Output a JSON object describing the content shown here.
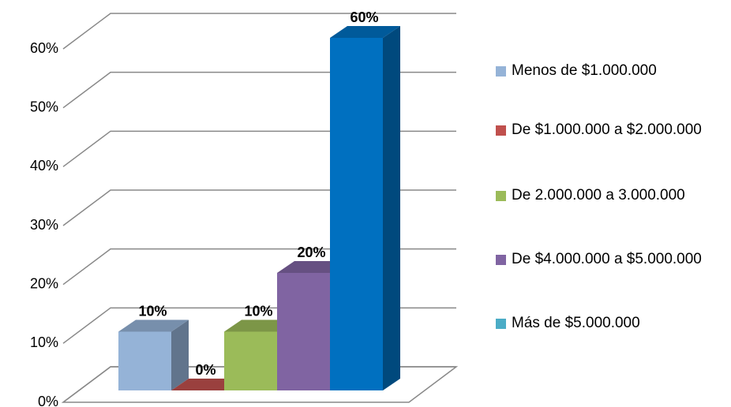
{
  "chart_data": {
    "type": "bar3d",
    "series": [
      {
        "name": "Menos de $1.000.000",
        "color": "#95b3d7",
        "values": [
          10
        ],
        "value_labels": [
          "10%"
        ]
      },
      {
        "name": "De $1.000.000 a $2.000.000",
        "color": "#c0504d",
        "values": [
          0
        ],
        "value_labels": [
          "0%"
        ]
      },
      {
        "name": "De 2.000.000 a 3.000.000",
        "color": "#9bbb59",
        "values": [
          10
        ],
        "value_labels": [
          "10%"
        ]
      },
      {
        "name": "De $4.000.000 a $5.000.000",
        "color": "#8064a2",
        "values": [
          20
        ],
        "value_labels": [
          "20%"
        ]
      },
      {
        "name": "Más de $5.000.000",
        "color": "#4bacc6",
        "bar_color": "#0070c0",
        "values": [
          60
        ],
        "value_labels": [
          "60%"
        ]
      }
    ],
    "ylim": [
      0,
      60
    ],
    "yticks": [
      {
        "value": 0,
        "label": "0%"
      },
      {
        "value": 10,
        "label": "10%"
      },
      {
        "value": 20,
        "label": "20%"
      },
      {
        "value": 30,
        "label": "30%"
      },
      {
        "value": 40,
        "label": "40%"
      },
      {
        "value": 50,
        "label": "50%"
      },
      {
        "value": 60,
        "label": "60%"
      }
    ],
    "grid": true,
    "legend": "right"
  }
}
